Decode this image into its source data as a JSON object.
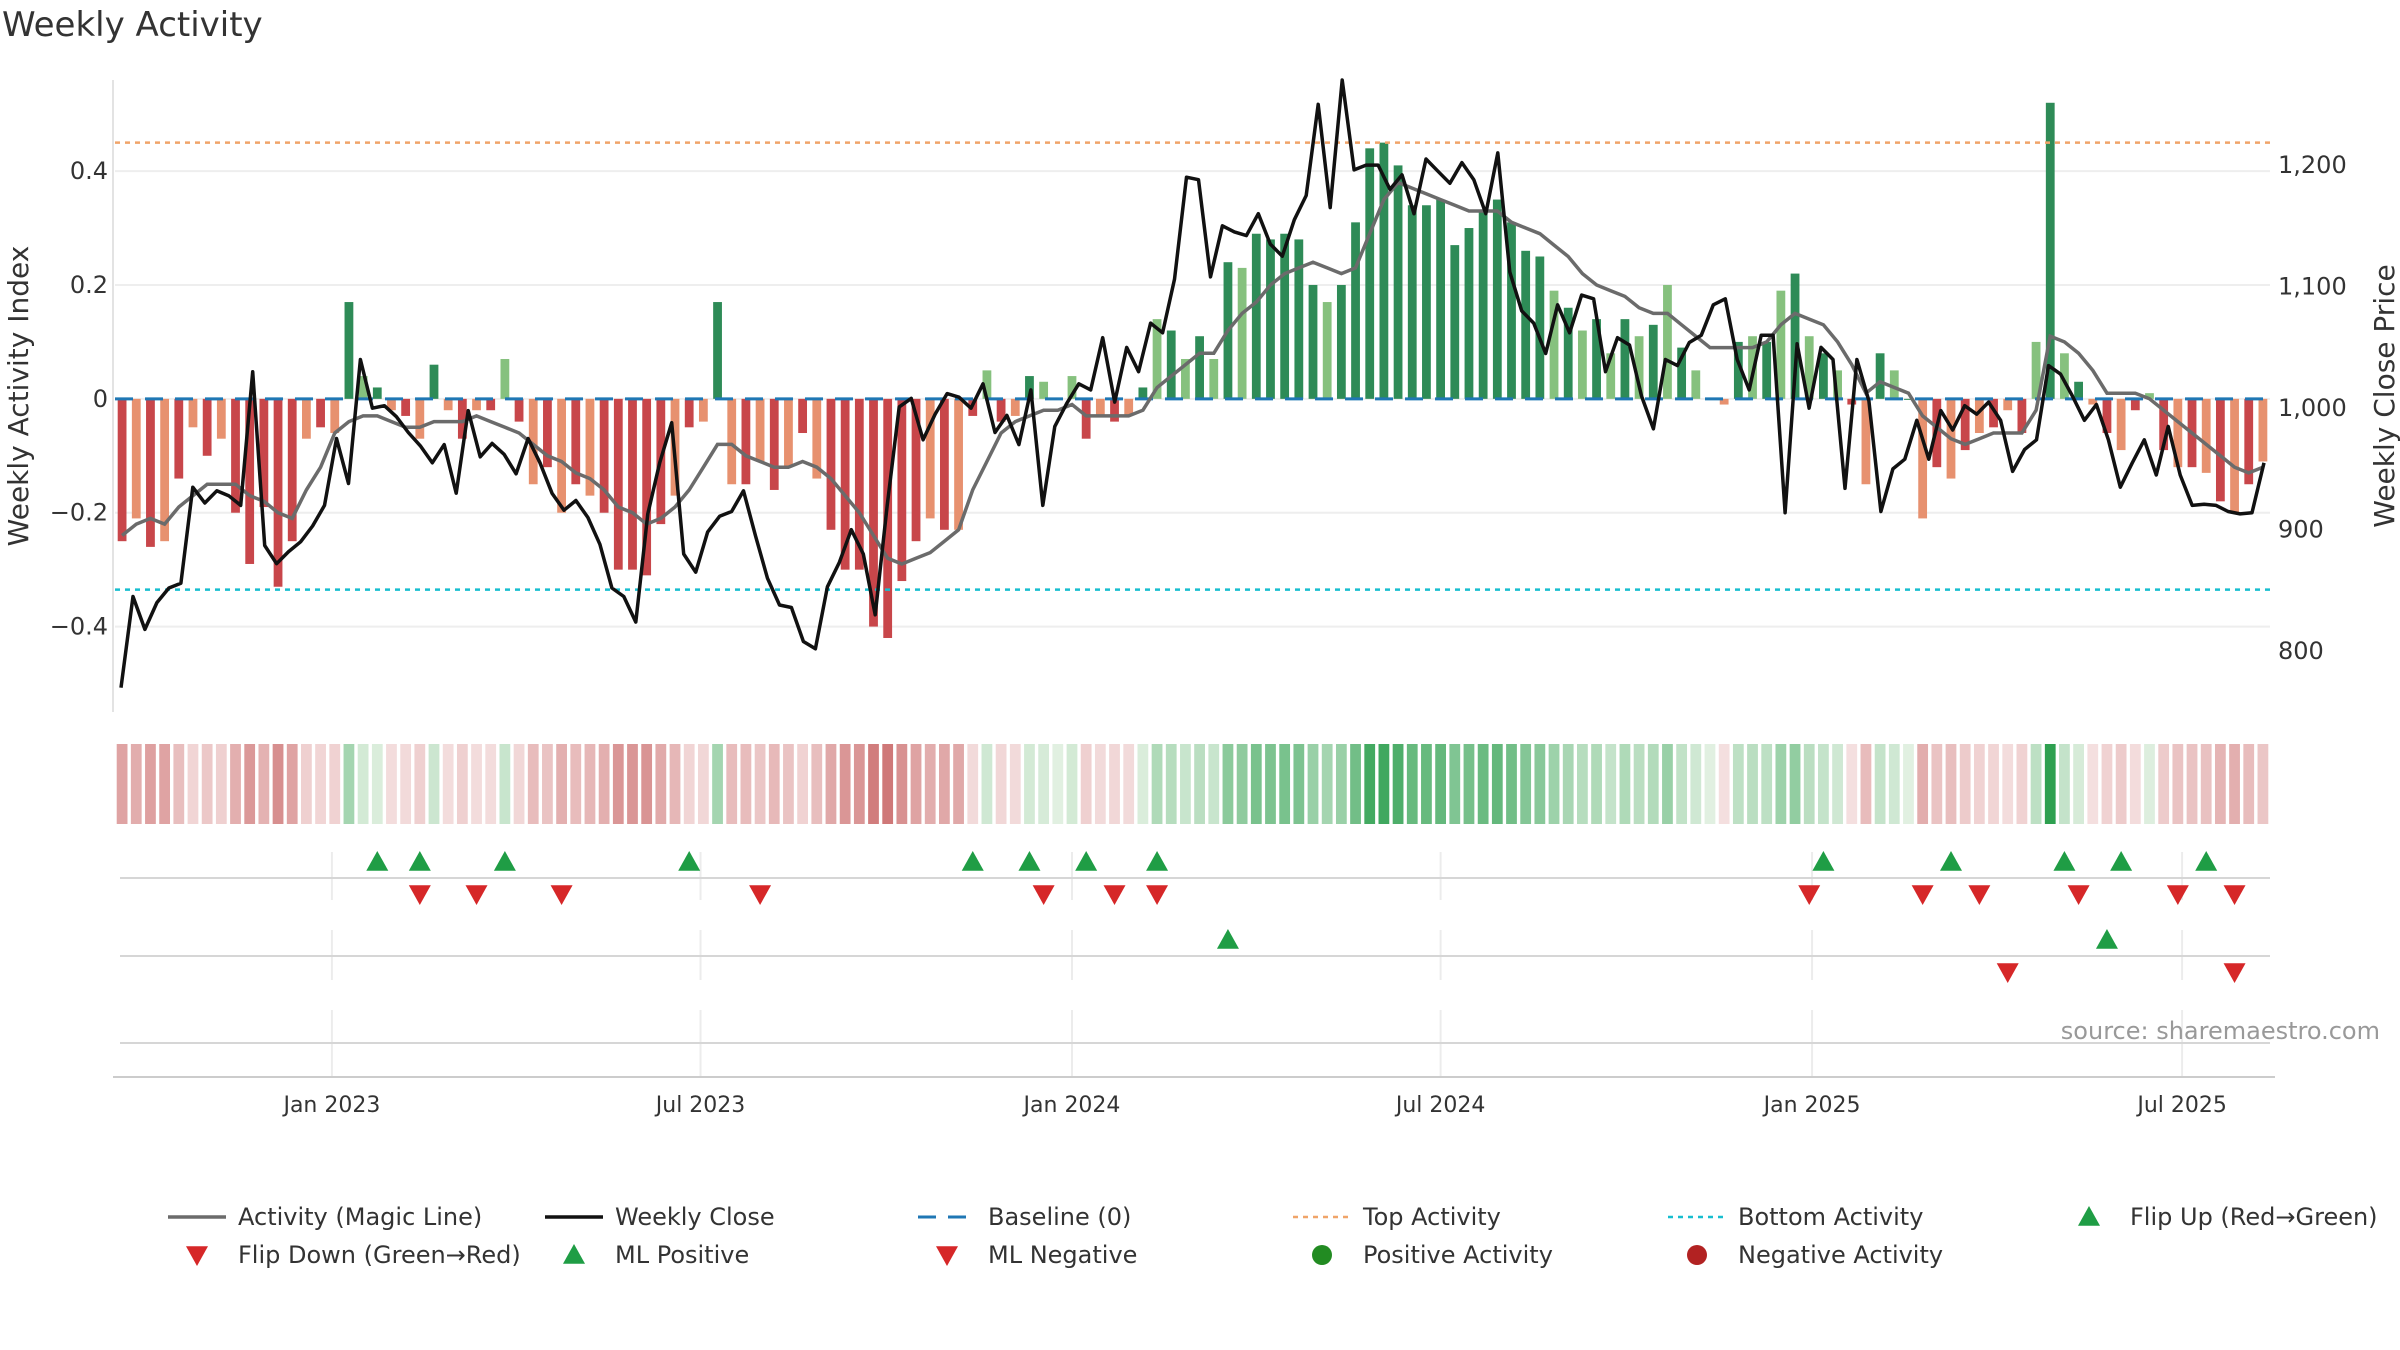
{
  "chart_data": {
    "type": "bar",
    "title": "Weekly Activity",
    "source_note": "source: sharemaestro.com",
    "left_axis": {
      "label": "Weekly Activity Index",
      "ylim": [
        -0.55,
        0.56
      ],
      "ticks": [
        -0.4,
        -0.2,
        0,
        0.2,
        0.4
      ],
      "tick_labels": [
        "−0.4",
        "−0.2",
        "0",
        "0.2",
        "0.4"
      ]
    },
    "right_axis": {
      "label": "Weekly Close Price",
      "ylim": [
        750,
        1270
      ],
      "ticks": [
        800,
        900,
        1000,
        1100,
        1200
      ],
      "tick_labels": [
        "800",
        "900",
        "1,000",
        "1,100",
        "1,200"
      ]
    },
    "x_axis": {
      "ticks": [
        "Jan 2023",
        "Jul 2023",
        "Jan 2024",
        "Jul 2024",
        "Jan 2025",
        "Jul 2025"
      ],
      "tick_indices": [
        14.8,
        40.8,
        67.0,
        93.0,
        119.2,
        145.3
      ]
    },
    "reference_lines": {
      "top_activity": 0.45,
      "bottom_activity": -0.335,
      "baseline": 0
    },
    "colors": {
      "activity_pos_strong": "#2e8b57",
      "activity_pos_light": "#86c17e",
      "activity_neg_strong": "#c8464a",
      "activity_neg_light": "#e7916f",
      "magic_line": "#6b6b6b",
      "weekly_close": "#111111",
      "baseline": "#1f77b4",
      "top_activity": "#f0a469",
      "bottom_activity": "#17becf",
      "marker_up": "#1f9d45",
      "marker_down": "#d62728",
      "positive_activity": "#228b22",
      "negative_activity": "#b22222"
    },
    "series": [
      {
        "name": "Weekly Activity Index",
        "kind": "bar",
        "values": [
          -0.25,
          -0.21,
          -0.26,
          -0.25,
          -0.14,
          -0.05,
          -0.1,
          -0.07,
          -0.2,
          -0.29,
          -0.19,
          -0.33,
          -0.25,
          -0.07,
          -0.05,
          -0.06,
          0.17,
          0.04,
          0.02,
          -0.02,
          -0.03,
          -0.07,
          0.06,
          -0.02,
          -0.07,
          -0.02,
          -0.02,
          0.07,
          -0.04,
          -0.15,
          -0.12,
          -0.2,
          -0.15,
          -0.17,
          -0.2,
          -0.3,
          -0.3,
          -0.31,
          -0.22,
          -0.17,
          -0.05,
          -0.04,
          0.17,
          -0.15,
          -0.15,
          -0.11,
          -0.16,
          -0.12,
          -0.06,
          -0.14,
          -0.23,
          -0.3,
          -0.3,
          -0.4,
          -0.42,
          -0.32,
          -0.25,
          -0.21,
          -0.23,
          -0.23,
          -0.03,
          0.05,
          -0.04,
          -0.03,
          0.04,
          0.03,
          0.0,
          0.04,
          -0.07,
          -0.03,
          -0.04,
          -0.03,
          0.02,
          0.14,
          0.12,
          0.07,
          0.11,
          0.07,
          0.24,
          0.23,
          0.29,
          0.28,
          0.29,
          0.28,
          0.2,
          0.17,
          0.2,
          0.31,
          0.44,
          0.45,
          0.41,
          0.34,
          0.34,
          0.35,
          0.27,
          0.3,
          0.33,
          0.35,
          0.31,
          0.26,
          0.25,
          0.19,
          0.16,
          0.12,
          0.14,
          0.08,
          0.14,
          0.11,
          0.13,
          0.2,
          0.09,
          0.05,
          0.0,
          -0.01,
          0.1,
          0.11,
          0.1,
          0.19,
          0.22,
          0.11,
          0.08,
          0.05,
          -0.01,
          -0.15,
          0.08,
          0.05,
          0.0,
          -0.21,
          -0.12,
          -0.14,
          -0.09,
          -0.06,
          -0.05,
          -0.02,
          -0.06,
          0.1,
          0.52,
          0.08,
          0.03,
          -0.01,
          -0.06,
          -0.09,
          -0.02,
          0.01,
          -0.09,
          -0.12,
          -0.12,
          -0.13,
          -0.18,
          -0.2,
          -0.15,
          -0.11
        ]
      },
      {
        "name": "Activity (Magic Line)",
        "kind": "line",
        "values": [
          -0.24,
          -0.22,
          -0.21,
          -0.22,
          -0.19,
          -0.17,
          -0.15,
          -0.15,
          -0.15,
          -0.17,
          -0.18,
          -0.2,
          -0.21,
          -0.16,
          -0.12,
          -0.06,
          -0.04,
          -0.03,
          -0.03,
          -0.04,
          -0.05,
          -0.05,
          -0.04,
          -0.04,
          -0.04,
          -0.03,
          -0.04,
          -0.05,
          -0.06,
          -0.08,
          -0.1,
          -0.11,
          -0.13,
          -0.14,
          -0.16,
          -0.19,
          -0.2,
          -0.22,
          -0.21,
          -0.19,
          -0.16,
          -0.12,
          -0.08,
          -0.08,
          -0.1,
          -0.11,
          -0.12,
          -0.12,
          -0.11,
          -0.12,
          -0.14,
          -0.17,
          -0.2,
          -0.24,
          -0.28,
          -0.29,
          -0.28,
          -0.27,
          -0.25,
          -0.23,
          -0.16,
          -0.11,
          -0.06,
          -0.04,
          -0.03,
          -0.02,
          -0.02,
          -0.01,
          -0.03,
          -0.03,
          -0.03,
          -0.03,
          -0.02,
          0.02,
          0.04,
          0.06,
          0.08,
          0.08,
          0.12,
          0.15,
          0.17,
          0.2,
          0.22,
          0.23,
          0.24,
          0.23,
          0.22,
          0.23,
          0.29,
          0.35,
          0.38,
          0.37,
          0.36,
          0.35,
          0.34,
          0.33,
          0.33,
          0.33,
          0.31,
          0.3,
          0.29,
          0.27,
          0.25,
          0.22,
          0.2,
          0.19,
          0.18,
          0.16,
          0.15,
          0.15,
          0.13,
          0.11,
          0.09,
          0.09,
          0.09,
          0.09,
          0.1,
          0.13,
          0.15,
          0.14,
          0.13,
          0.1,
          0.06,
          0.01,
          0.03,
          0.02,
          0.01,
          -0.03,
          -0.05,
          -0.07,
          -0.08,
          -0.07,
          -0.06,
          -0.06,
          -0.06,
          -0.02,
          0.11,
          0.1,
          0.08,
          0.05,
          0.01,
          0.01,
          0.01,
          0.0,
          -0.02,
          -0.04,
          -0.06,
          -0.08,
          -0.1,
          -0.12,
          -0.13,
          -0.12
        ]
      },
      {
        "name": "Weekly Close",
        "kind": "line",
        "axis": "right",
        "values": [
          770,
          845,
          818,
          840,
          852,
          856,
          935,
          922,
          932,
          928,
          920,
          1030,
          887,
          872,
          882,
          890,
          903,
          920,
          975,
          938,
          1040,
          1000,
          1002,
          993,
          980,
          969,
          955,
          970,
          930,
          998,
          960,
          971,
          962,
          946,
          975,
          955,
          930,
          916,
          924,
          910,
          888,
          852,
          845,
          824,
          913,
          955,
          988,
          880,
          865,
          898,
          911,
          915,
          932,
          895,
          860,
          838,
          836,
          808,
          802,
          853,
          873,
          900,
          880,
          830,
          920,
          1001,
          1008,
          974,
          995,
          1012,
          1009,
          1000,
          1020,
          980,
          994,
          970,
          1015,
          920,
          985,
          1004,
          1020,
          1015,
          1058,
          1005,
          1050,
          1030,
          1070,
          1062,
          1106,
          1190,
          1188,
          1108,
          1150,
          1145,
          1142,
          1160,
          1135,
          1125,
          1155,
          1175,
          1250,
          1165,
          1270,
          1196,
          1200,
          1200,
          1180,
          1192,
          1160,
          1205,
          1195,
          1185,
          1202,
          1188,
          1160,
          1210,
          1112,
          1080,
          1070,
          1045,
          1085,
          1062,
          1093,
          1090,
          1030,
          1058,
          1052,
          1010,
          983,
          1040,
          1035,
          1054,
          1060,
          1085,
          1090,
          1040,
          1015,
          1060,
          1060,
          914,
          1053,
          1000,
          1050,
          1040,
          934,
          1040,
          1006,
          915,
          950,
          958,
          990,
          958,
          998,
          982,
          1002,
          995,
          1005,
          990,
          948,
          966,
          974,
          1035,
          1028,
          1010,
          990,
          1003,
          974,
          935,
          955,
          974,
          945,
          985,
          945,
          920,
          921,
          920,
          915,
          913,
          914,
          955
        ]
      },
      {
        "name": "Flip Up (Red→Green)",
        "kind": "marker",
        "row": 1,
        "indices": [
          18,
          21,
          27,
          40,
          60,
          64,
          68,
          73,
          120,
          129,
          137,
          141,
          147
        ]
      },
      {
        "name": "Flip Down (Green→Red)",
        "kind": "marker",
        "row": 1,
        "indices": [
          21,
          25,
          31,
          45,
          65,
          70,
          73,
          119,
          127,
          131,
          138,
          145,
          149
        ]
      },
      {
        "name": "ML Positive",
        "kind": "marker",
        "row": 2,
        "indices": [
          78,
          140
        ]
      },
      {
        "name": "ML Negative",
        "kind": "marker",
        "row": 2,
        "indices": [
          133,
          149
        ]
      }
    ],
    "legend": {
      "placement": "bottom",
      "items": [
        {
          "label": "Activity (Magic Line)",
          "symbol": "line",
          "color_key": "magic_line"
        },
        {
          "label": "Weekly Close",
          "symbol": "line",
          "color_key": "weekly_close"
        },
        {
          "label": "Baseline (0)",
          "symbol": "dash",
          "color_key": "baseline"
        },
        {
          "label": "Top Activity",
          "symbol": "dot",
          "color_key": "top_activity"
        },
        {
          "label": "Bottom Activity",
          "symbol": "dot",
          "color_key": "bottom_activity"
        },
        {
          "label": "Flip Up (Red→Green)",
          "symbol": "tri-up",
          "color_key": "marker_up"
        },
        {
          "label": "Flip Down (Green→Red)",
          "symbol": "tri-down",
          "color_key": "marker_down"
        },
        {
          "label": "ML Positive",
          "symbol": "tri-up",
          "color_key": "marker_up"
        },
        {
          "label": "ML Negative",
          "symbol": "tri-down",
          "color_key": "marker_down"
        },
        {
          "label": "Positive Activity",
          "symbol": "circle",
          "color_key": "positive_activity"
        },
        {
          "label": "Negative Activity",
          "symbol": "circle",
          "color_key": "negative_activity"
        }
      ]
    }
  }
}
